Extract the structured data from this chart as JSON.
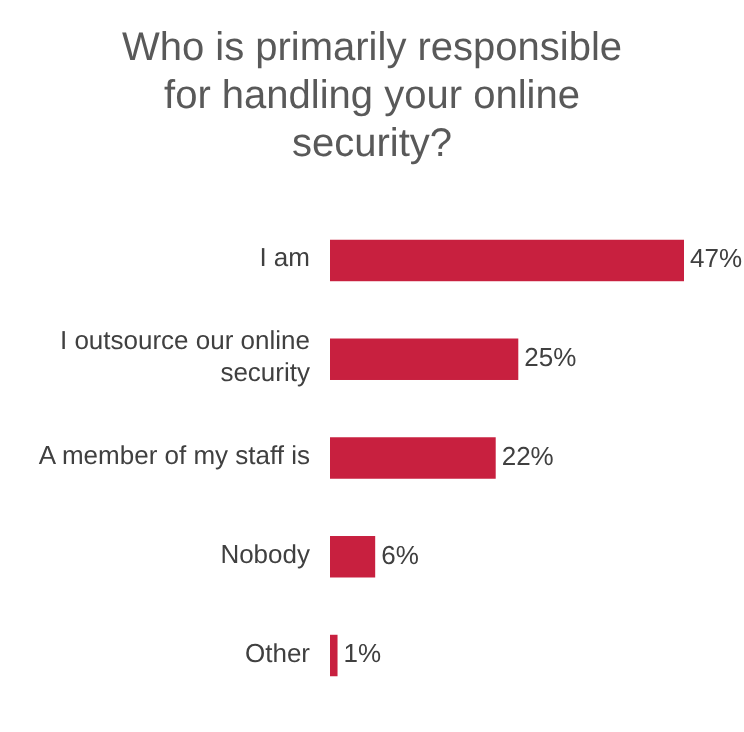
{
  "chart_data": {
    "type": "bar",
    "orientation": "horizontal",
    "title": "Who is primarily responsible for handling your online security?",
    "categories": [
      "I am",
      "I outsource our online security",
      "A member of my staff is",
      "Nobody",
      "Other"
    ],
    "values": [
      47,
      25,
      22,
      6,
      1
    ],
    "value_labels": [
      "47%",
      "25%",
      "22%",
      "6%",
      "1%"
    ],
    "color": "#c8203f"
  }
}
